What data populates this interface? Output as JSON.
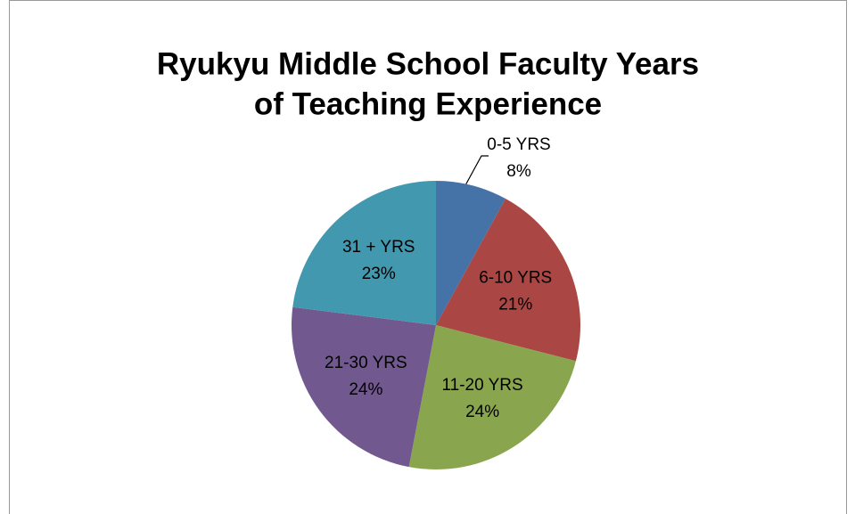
{
  "chart_data": {
    "type": "pie",
    "title": [
      "Ryukyu Middle School Faculty Years",
      "of Teaching Experience"
    ],
    "categories": [
      "0-5 YRS",
      "6-10 YRS",
      "11-20 YRS",
      "21-30 YRS",
      "31 + YRS"
    ],
    "values": [
      8,
      21,
      24,
      24,
      23
    ],
    "value_labels": [
      "8%",
      "21%",
      "24%",
      "24%",
      "23%"
    ],
    "colors": [
      "#4572a7",
      "#aa4643",
      "#89a54e",
      "#71588f",
      "#4198af"
    ]
  }
}
